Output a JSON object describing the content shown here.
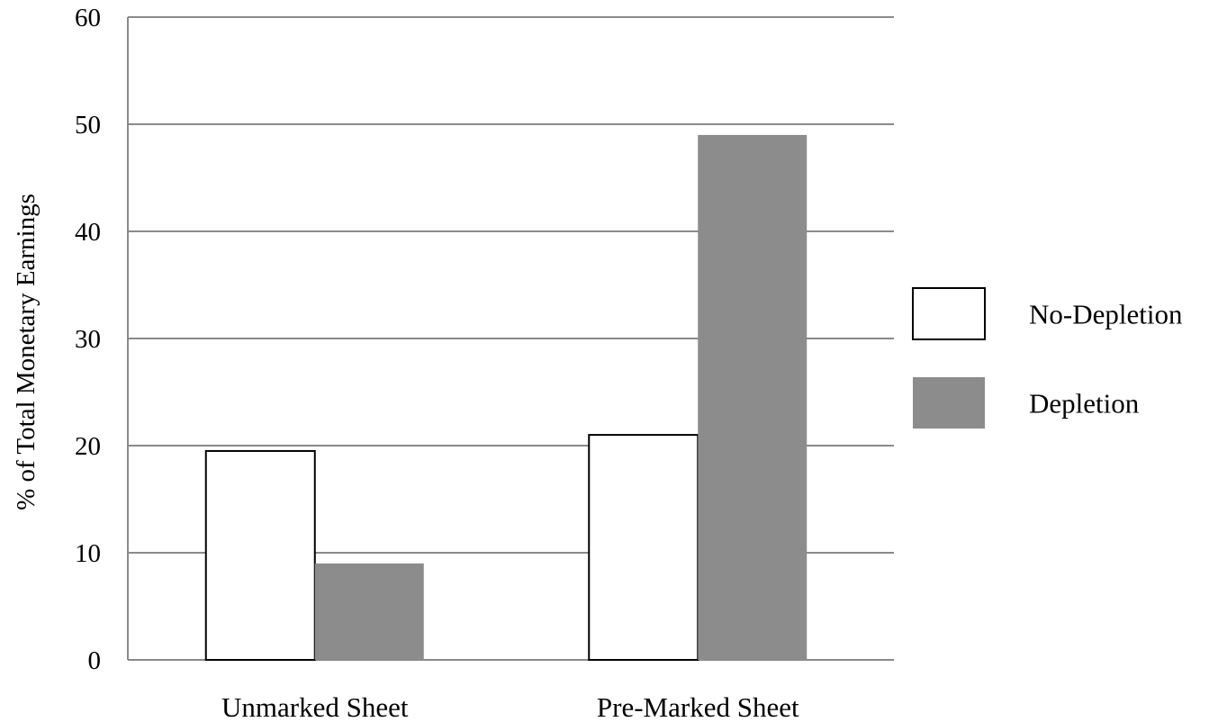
{
  "chart_data": {
    "type": "bar",
    "title": "",
    "xlabel": "",
    "ylabel": "% of Total Monetary Earnings",
    "categories": [
      "Unmarked Sheet",
      "Pre-Marked Sheet"
    ],
    "series": [
      {
        "name": "No-Depletion",
        "values": [
          19.5,
          21
        ],
        "color": "#ffffff"
      },
      {
        "name": "Depletion",
        "values": [
          9,
          49
        ],
        "color": "#8c8c8c"
      }
    ],
    "ylim": [
      0,
      60
    ],
    "yticks": [
      0,
      10,
      20,
      30,
      40,
      50,
      60
    ],
    "grid": true,
    "legend": "right"
  }
}
